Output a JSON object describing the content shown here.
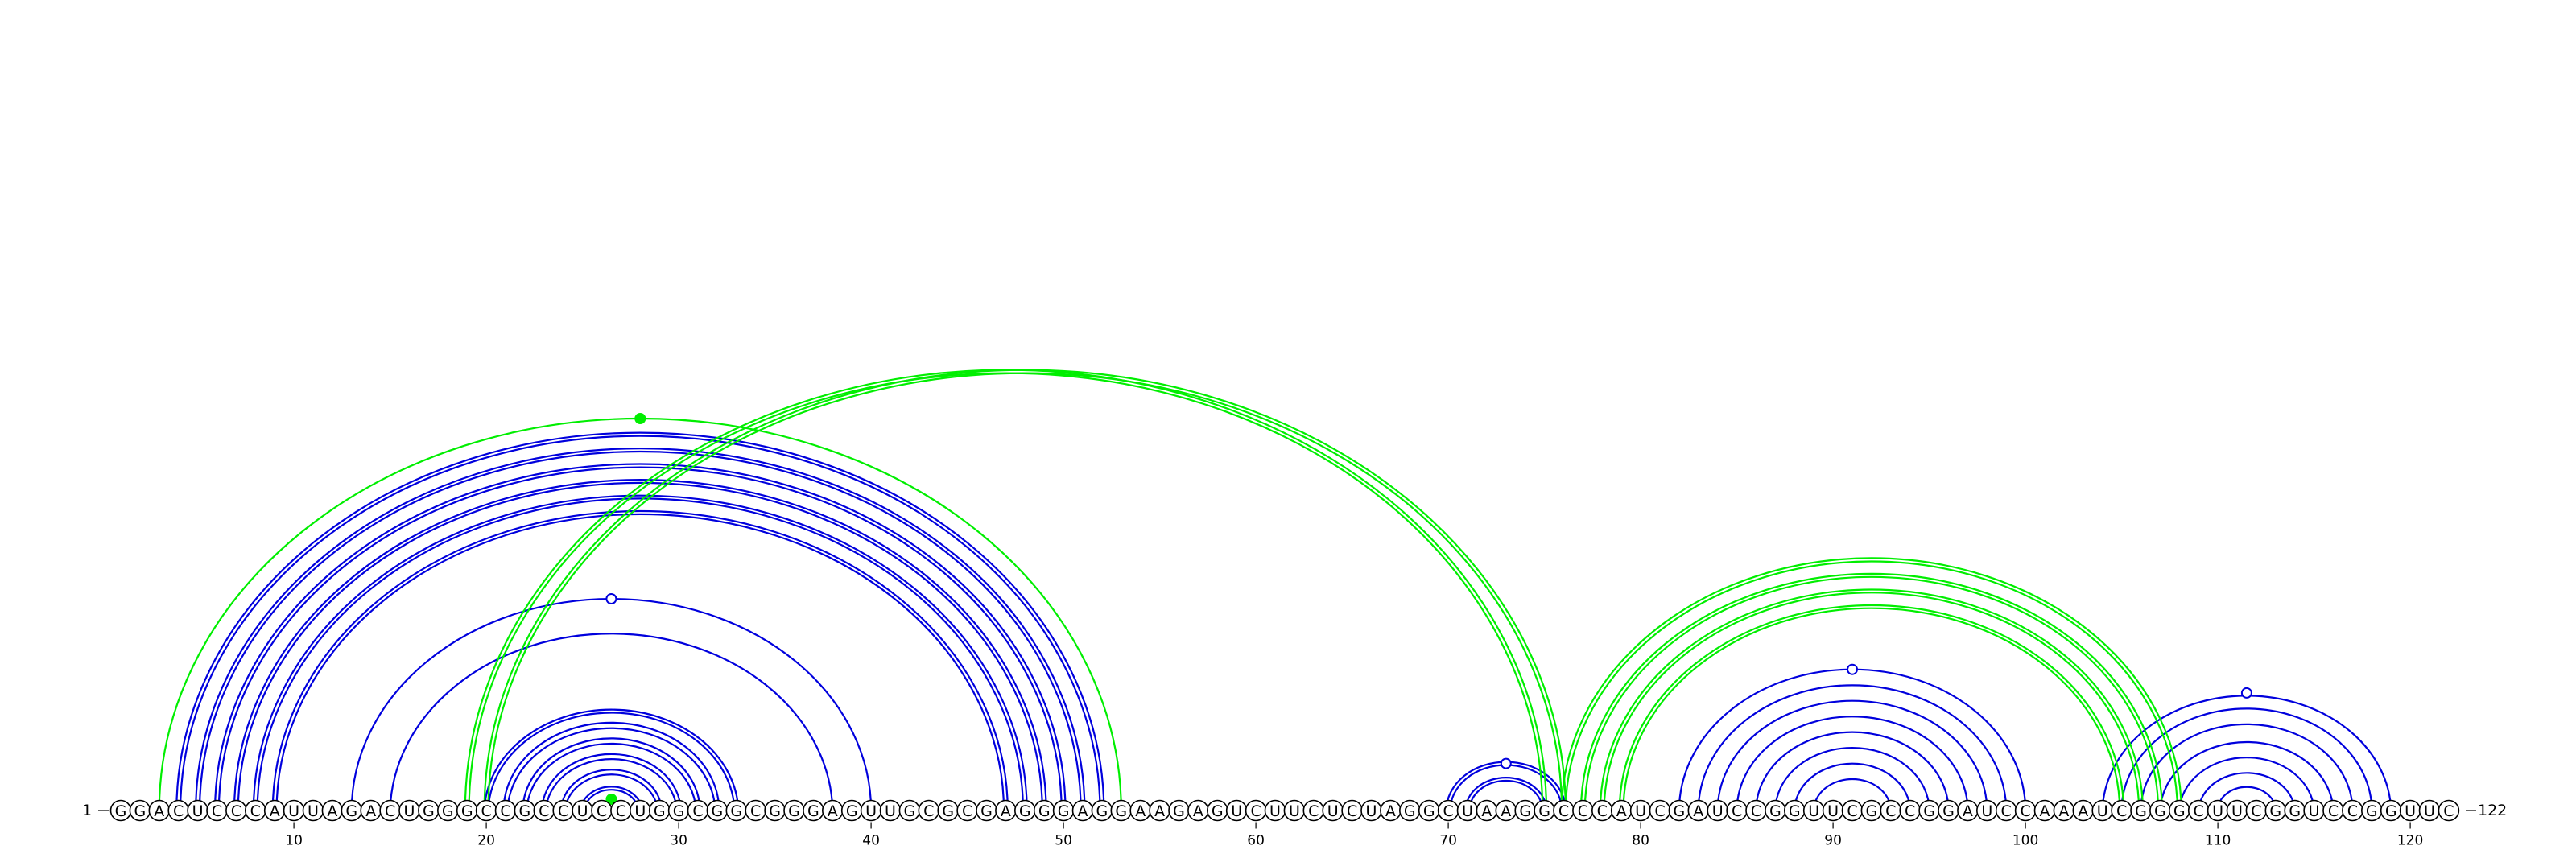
{
  "sequence": "GGACUCCCAUUAGACUGGGCCGCCUCCUGGCGGCGGGAGUUGCGCGAGGGAGGAAGAGUCUUCUCUAGGCUAAGGCCCAUCGAUCCGGUUCGCCGGAUCCAAAUCGGGCUUCGGUCCGGUUC",
  "start_label": "1",
  "end_label": "122",
  "ticks": [
    "10",
    "20",
    "30",
    "40",
    "50",
    "60",
    "70",
    "80",
    "90",
    "100",
    "110",
    "120"
  ],
  "colors": {
    "blue": "#0000dd",
    "green": "#00ee00",
    "text": "#000000"
  },
  "blue_stems": [
    {
      "pairs": [
        [
          4,
          52
        ],
        [
          5,
          51
        ],
        [
          6,
          50
        ],
        [
          7,
          49
        ],
        [
          8,
          48
        ],
        [
          9,
          47
        ]
      ],
      "double": true
    },
    {
      "pairs": [
        [
          13,
          40
        ],
        [
          15,
          38
        ]
      ],
      "double": false,
      "marker": "open"
    },
    {
      "pairs": [
        [
          20,
          33
        ],
        [
          21,
          32
        ],
        [
          22,
          31
        ],
        [
          23,
          30
        ],
        [
          24,
          29
        ],
        [
          25,
          28
        ]
      ],
      "double": true
    },
    {
      "pairs": [
        [
          70,
          76
        ],
        [
          71,
          75
        ]
      ],
      "double": true,
      "marker": "open"
    },
    {
      "pairs": [
        [
          82,
          100
        ],
        [
          83,
          99
        ],
        [
          84,
          98
        ],
        [
          85,
          97
        ],
        [
          86,
          96
        ],
        [
          87,
          95
        ],
        [
          88,
          94
        ],
        [
          89,
          93
        ]
      ],
      "double": false,
      "marker": "open"
    },
    {
      "pairs": [
        [
          104,
          119
        ],
        [
          105,
          118
        ],
        [
          106,
          117
        ],
        [
          107,
          116
        ],
        [
          108,
          115
        ],
        [
          109,
          114
        ],
        [
          110,
          113
        ]
      ],
      "double": false,
      "marker": "open"
    }
  ],
  "green_stems": [
    {
      "pairs": [
        [
          3,
          53
        ]
      ],
      "double": false,
      "marker": "filled"
    },
    {
      "pairs": [
        [
          26,
          27
        ]
      ],
      "double": false,
      "marker": "filled"
    },
    {
      "pairs": [
        [
          19,
          75
        ],
        [
          20,
          76
        ]
      ],
      "double": true
    },
    {
      "pairs": [
        [
          76,
          108
        ],
        [
          77,
          107
        ],
        [
          78,
          106
        ],
        [
          79,
          105
        ]
      ],
      "double": true
    }
  ]
}
